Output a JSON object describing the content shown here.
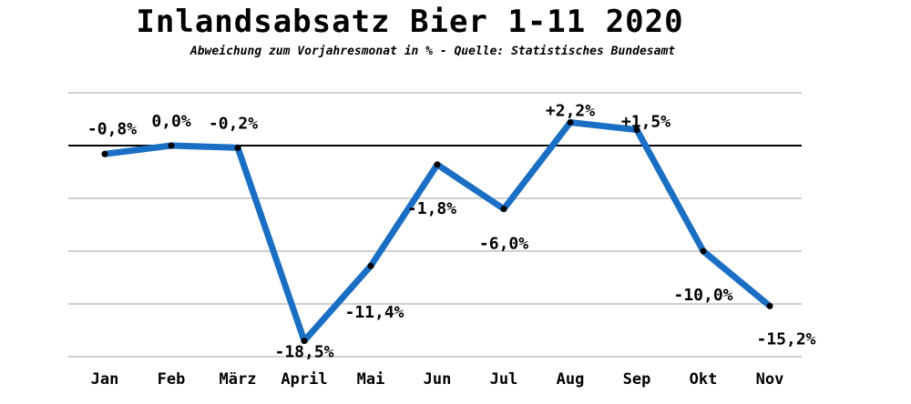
{
  "chart_data": {
    "type": "line",
    "title": "Inlandsabsatz Bier 1-11 2020",
    "subtitle": "Abweichung zum Vorjahresmonat in % - Quelle: Statistisches Bundesamt",
    "xlabel": "",
    "ylabel": "",
    "categories": [
      "Jan",
      "Feb",
      "März",
      "April",
      "Mai",
      "Jun",
      "Jul",
      "Aug",
      "Sep",
      "Okt",
      "Nov"
    ],
    "values": [
      -0.8,
      0.0,
      -0.2,
      -18.5,
      -11.4,
      -1.8,
      -6.0,
      2.2,
      1.5,
      -10.0,
      -15.2
    ],
    "data_labels": [
      "-0,8%",
      "0,0%",
      "-0,2%",
      "-18,5%",
      "-11,4%",
      "-1,8%",
      "-6,0%",
      "+2,2%",
      "+1,5%",
      "-10,0%",
      "-15,2%"
    ],
    "ylim": [
      -20,
      5
    ],
    "gridlines": [
      5,
      0,
      -5,
      -10,
      -15,
      -20
    ],
    "grid": true,
    "legend": "none",
    "line_color": "#1a6fc4",
    "zero_line_color": "#000000"
  }
}
